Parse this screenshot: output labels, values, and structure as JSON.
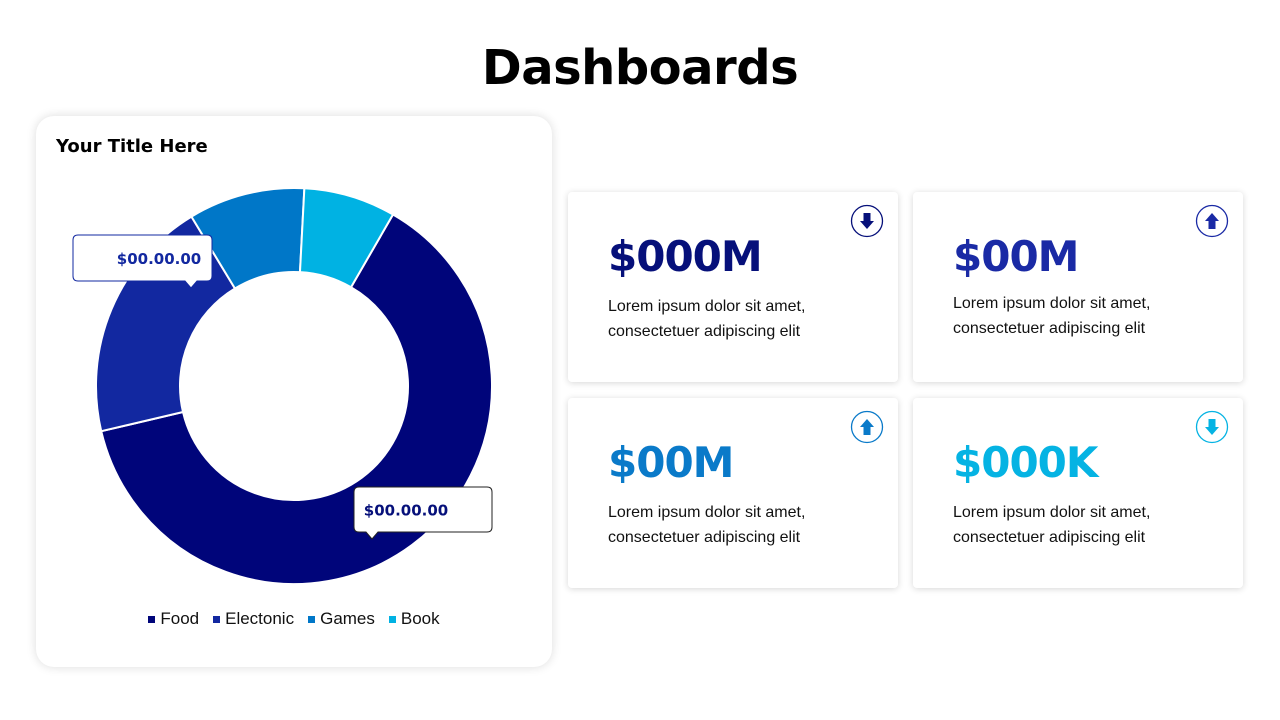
{
  "page": {
    "title": "Dashboards"
  },
  "chart_data": {
    "type": "donut",
    "title": "Your Title Here",
    "categories": [
      "Food",
      "Electonic",
      "Games",
      "Book"
    ],
    "values": [
      63,
      20,
      9.5,
      7.5
    ],
    "colors": [
      "#00057a",
      "#1228a0",
      "#0077c8",
      "#00b2e3"
    ],
    "callouts": [
      {
        "text": "$00.00.00",
        "series": "Electonic"
      },
      {
        "text": "$00.00.00",
        "series": "Food"
      }
    ],
    "legend_position": "bottom"
  },
  "stats": [
    {
      "value": "$000M",
      "value_color": "#06107a",
      "desc_line1": "Lorem ipsum dolor sit amet,",
      "desc_line2": "consectetuer adipiscing elit",
      "icon": "arrow-down-icon",
      "icon_color": "#06107a"
    },
    {
      "value": "$00M",
      "value_color": "#1a2aa5",
      "desc_line1": "Lorem ipsum dolor sit amet,",
      "desc_line2": "consectetuer adipiscing elit",
      "icon": "arrow-up-icon",
      "icon_color": "#1a2aa5"
    },
    {
      "value": "$00M",
      "value_color": "#0a7ac9",
      "desc_line1": "Lorem ipsum dolor sit amet,",
      "desc_line2": "consectetuer adipiscing elit",
      "icon": "arrow-up-icon",
      "icon_color": "#0a7ac9"
    },
    {
      "value": "$000K",
      "value_color": "#05b3e3",
      "desc_line1": "Lorem ipsum dolor sit amet,",
      "desc_line2": "consectetuer adipiscing elit",
      "icon": "arrow-down-icon",
      "icon_color": "#05b3e3"
    }
  ]
}
